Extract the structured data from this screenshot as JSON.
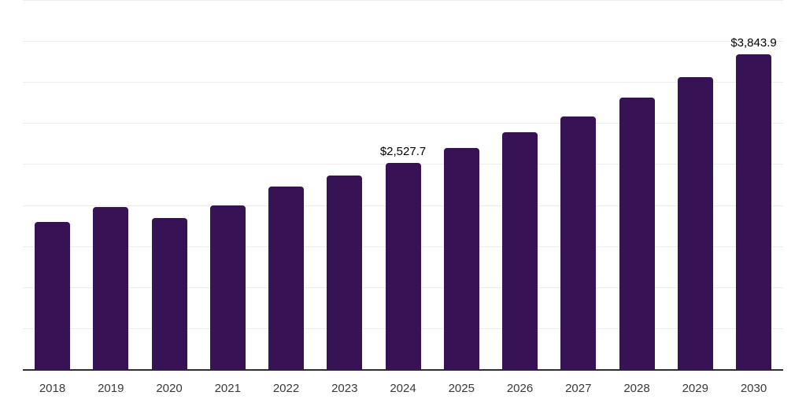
{
  "chart_data": {
    "type": "bar",
    "title": "",
    "xlabel": "",
    "ylabel": "",
    "ylim": [
      0,
      4500
    ],
    "gridline_interval": 500,
    "grid": true,
    "legend": false,
    "bar_color": "#371254",
    "gridline_color": "#ededed",
    "axis_line_color": "#2e2e2e",
    "value_label_color": "#000000",
    "tick_label_color": "#3a3a3a",
    "categories": [
      "2018",
      "2019",
      "2020",
      "2021",
      "2022",
      "2023",
      "2024",
      "2025",
      "2026",
      "2027",
      "2028",
      "2029",
      "2030"
    ],
    "values": [
      1805,
      1990,
      1855,
      2005,
      2235,
      2370,
      2527.7,
      2705,
      2900,
      3090,
      3320,
      3570,
      3843.9
    ],
    "points": [
      {
        "year": "2018",
        "value": 1805,
        "label": null
      },
      {
        "year": "2019",
        "value": 1990,
        "label": null
      },
      {
        "year": "2020",
        "value": 1855,
        "label": null
      },
      {
        "year": "2021",
        "value": 2005,
        "label": null
      },
      {
        "year": "2022",
        "value": 2235,
        "label": null
      },
      {
        "year": "2023",
        "value": 2370,
        "label": null
      },
      {
        "year": "2024",
        "value": 2527.7,
        "label": "$2,527.7"
      },
      {
        "year": "2025",
        "value": 2705,
        "label": null
      },
      {
        "year": "2026",
        "value": 2900,
        "label": null
      },
      {
        "year": "2027",
        "value": 3090,
        "label": null
      },
      {
        "year": "2028",
        "value": 3320,
        "label": null
      },
      {
        "year": "2029",
        "value": 3570,
        "label": null
      },
      {
        "year": "2030",
        "value": 3843.9,
        "label": "$3,843.9"
      }
    ]
  }
}
